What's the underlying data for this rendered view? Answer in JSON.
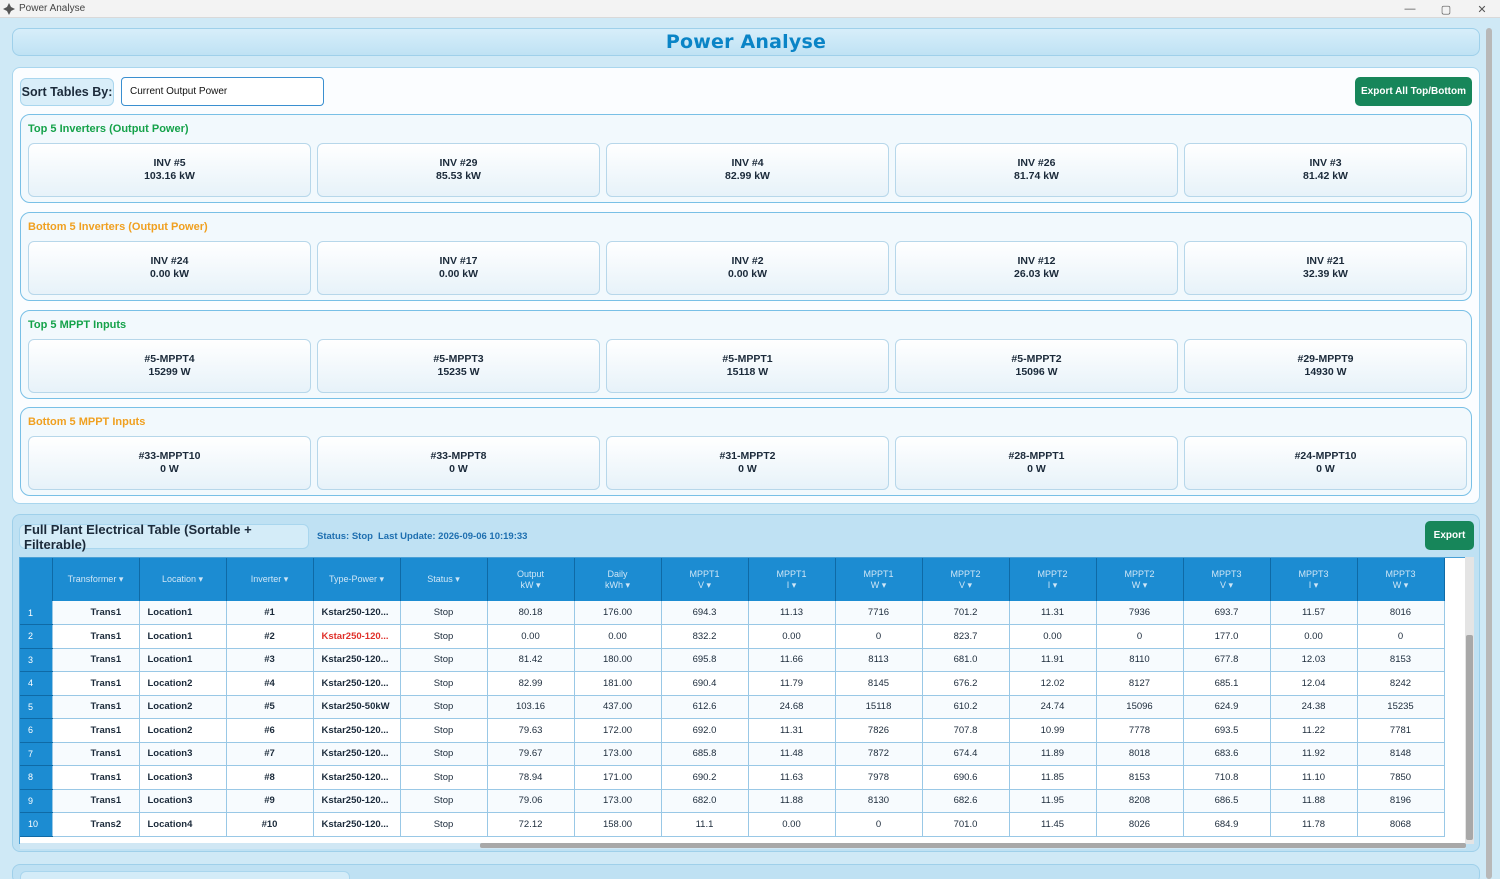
{
  "window": {
    "title": "Power Analyse",
    "minimize": "—",
    "maximize": "▢",
    "close": "✕"
  },
  "header": {
    "title": "Power Analyse"
  },
  "sort": {
    "label": "Sort Tables By:",
    "value": "Current Output Power"
  },
  "export_all_label": "Export All Top/Bottom",
  "groups": [
    {
      "title": "Top 5 Inverters (Output Power)",
      "color": "#15a24a",
      "cards": [
        {
          "name": "INV #5",
          "value": "103.16 kW"
        },
        {
          "name": "INV #29",
          "value": "85.53 kW"
        },
        {
          "name": "INV #4",
          "value": "82.99 kW"
        },
        {
          "name": "INV #26",
          "value": "81.74 kW"
        },
        {
          "name": "INV #3",
          "value": "81.42 kW"
        }
      ]
    },
    {
      "title": "Bottom 5 Inverters (Output Power)",
      "color": "#f0a020",
      "cards": [
        {
          "name": "INV #24",
          "value": "0.00 kW"
        },
        {
          "name": "INV #17",
          "value": "0.00 kW"
        },
        {
          "name": "INV #2",
          "value": "0.00 kW"
        },
        {
          "name": "INV #12",
          "value": "26.03 kW"
        },
        {
          "name": "INV #21",
          "value": "32.39 kW"
        }
      ]
    },
    {
      "title": "Top 5 MPPT Inputs",
      "color": "#15a24a",
      "cards": [
        {
          "name": "#5-MPPT4",
          "value": "15299 W"
        },
        {
          "name": "#5-MPPT3",
          "value": "15235 W"
        },
        {
          "name": "#5-MPPT1",
          "value": "15118 W"
        },
        {
          "name": "#5-MPPT2",
          "value": "15096 W"
        },
        {
          "name": "#29-MPPT9",
          "value": "14930 W"
        }
      ]
    },
    {
      "title": "Bottom 5 MPPT Inputs",
      "color": "#f0a020",
      "cards": [
        {
          "name": "#33-MPPT10",
          "value": "0 W"
        },
        {
          "name": "#33-MPPT8",
          "value": "0 W"
        },
        {
          "name": "#31-MPPT2",
          "value": "0 W"
        },
        {
          "name": "#28-MPPT1",
          "value": "0 W"
        },
        {
          "name": "#24-MPPT10",
          "value": "0 W"
        }
      ]
    }
  ],
  "table_panel": {
    "title": "Full Plant Electrical Table (Sortable + Filterable)",
    "status": "Status: Stop",
    "last_update": "Last Update: 2026-09-06 10:19:33",
    "export_label": "Export"
  },
  "table": {
    "columns": [
      {
        "l1": "Transformer ▾",
        "l2": ""
      },
      {
        "l1": "Location ▾",
        "l2": ""
      },
      {
        "l1": "Inverter ▾",
        "l2": ""
      },
      {
        "l1": "Type-Power ▾",
        "l2": ""
      },
      {
        "l1": "Status ▾",
        "l2": ""
      },
      {
        "l1": "Output",
        "l2": "kW ▾"
      },
      {
        "l1": "Daily",
        "l2": "kWh ▾"
      },
      {
        "l1": "MPPT1",
        "l2": "V ▾"
      },
      {
        "l1": "MPPT1",
        "l2": "I ▾"
      },
      {
        "l1": "MPPT1",
        "l2": "W ▾"
      },
      {
        "l1": "MPPT2",
        "l2": "V ▾"
      },
      {
        "l1": "MPPT2",
        "l2": "I ▾"
      },
      {
        "l1": "MPPT2",
        "l2": "W ▾"
      },
      {
        "l1": "MPPT3",
        "l2": "V ▾"
      },
      {
        "l1": "MPPT3",
        "l2": "I ▾"
      },
      {
        "l1": "MPPT3",
        "l2": "W ▾"
      }
    ],
    "rows": [
      {
        "n": "1",
        "c": [
          "Trans1",
          "Location1",
          "#1",
          "Kstar250-120...",
          "Stop",
          "80.18",
          "176.00",
          "694.3",
          "11.13",
          "7716",
          "701.2",
          "11.31",
          "7936",
          "693.7",
          "11.57",
          "8016"
        ],
        "red": false
      },
      {
        "n": "2",
        "c": [
          "Trans1",
          "Location1",
          "#2",
          "Kstar250-120...",
          "Stop",
          "0.00",
          "0.00",
          "832.2",
          "0.00",
          "0",
          "823.7",
          "0.00",
          "0",
          "177.0",
          "0.00",
          "0"
        ],
        "red": true
      },
      {
        "n": "3",
        "c": [
          "Trans1",
          "Location1",
          "#3",
          "Kstar250-120...",
          "Stop",
          "81.42",
          "180.00",
          "695.8",
          "11.66",
          "8113",
          "681.0",
          "11.91",
          "8110",
          "677.8",
          "12.03",
          "8153"
        ],
        "red": false
      },
      {
        "n": "4",
        "c": [
          "Trans1",
          "Location2",
          "#4",
          "Kstar250-120...",
          "Stop",
          "82.99",
          "181.00",
          "690.4",
          "11.79",
          "8145",
          "676.2",
          "12.02",
          "8127",
          "685.1",
          "12.04",
          "8242"
        ],
        "red": false
      },
      {
        "n": "5",
        "c": [
          "Trans1",
          "Location2",
          "#5",
          "Kstar250-50kW",
          "Stop",
          "103.16",
          "437.00",
          "612.6",
          "24.68",
          "15118",
          "610.2",
          "24.74",
          "15096",
          "624.9",
          "24.38",
          "15235"
        ],
        "red": false
      },
      {
        "n": "6",
        "c": [
          "Trans1",
          "Location2",
          "#6",
          "Kstar250-120...",
          "Stop",
          "79.63",
          "172.00",
          "692.0",
          "11.31",
          "7826",
          "707.8",
          "10.99",
          "7778",
          "693.5",
          "11.22",
          "7781"
        ],
        "red": false
      },
      {
        "n": "7",
        "c": [
          "Trans1",
          "Location3",
          "#7",
          "Kstar250-120...",
          "Stop",
          "79.67",
          "173.00",
          "685.8",
          "11.48",
          "7872",
          "674.4",
          "11.89",
          "8018",
          "683.6",
          "11.92",
          "8148"
        ],
        "red": false
      },
      {
        "n": "8",
        "c": [
          "Trans1",
          "Location3",
          "#8",
          "Kstar250-120...",
          "Stop",
          "78.94",
          "171.00",
          "690.2",
          "11.63",
          "7978",
          "690.6",
          "11.85",
          "8153",
          "710.8",
          "11.10",
          "7850"
        ],
        "red": false
      },
      {
        "n": "9",
        "c": [
          "Trans1",
          "Location3",
          "#9",
          "Kstar250-120...",
          "Stop",
          "79.06",
          "173.00",
          "682.0",
          "11.88",
          "8130",
          "682.6",
          "11.95",
          "8208",
          "686.5",
          "11.88",
          "8196"
        ],
        "red": false
      },
      {
        "n": "10",
        "c": [
          "Trans2",
          "Location4",
          "#10",
          "Kstar250-120...",
          "Stop",
          "72.12",
          "158.00",
          "11.1",
          "0.00",
          "0",
          "701.0",
          "11.45",
          "8026",
          "684.9",
          "11.78",
          "8068"
        ],
        "red": false
      }
    ]
  }
}
